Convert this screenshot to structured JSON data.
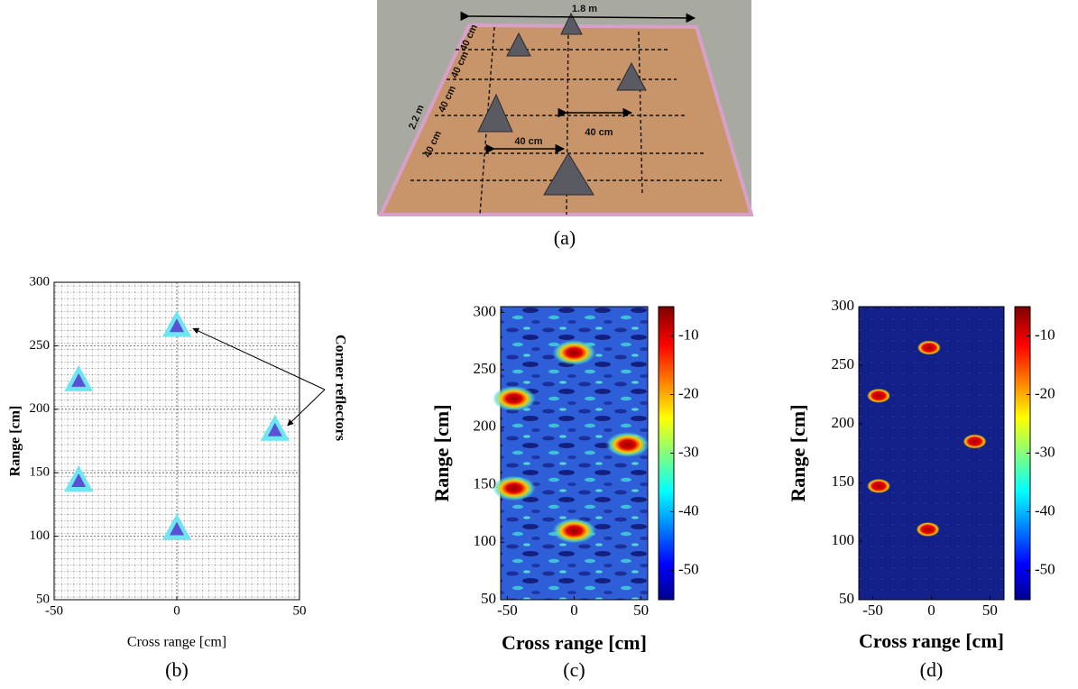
{
  "photo": {
    "labels": [
      "1.8 m",
      "2.2 m",
      "40 cm",
      "40 cm",
      "40 cm",
      "40 cm",
      "40 cm",
      "40 cm"
    ],
    "caption": "(a)"
  },
  "chart_data": [
    {
      "type": "scatter",
      "caption": "(b)",
      "xlabel": "Cross range [cm]",
      "ylabel": "Range [cm]",
      "annotation": "Corner reflectors",
      "x": [
        0,
        -40,
        40,
        -40,
        0
      ],
      "y": [
        265,
        222,
        183,
        143,
        105
      ],
      "xlim": [
        -50,
        50
      ],
      "ylim": [
        50,
        300
      ],
      "xticks": [
        -50,
        0,
        50
      ],
      "yticks": [
        50,
        100,
        150,
        200,
        250,
        300
      ],
      "grid": true
    },
    {
      "type": "heatmap",
      "caption": "(c)",
      "xlabel": "Cross range [cm]",
      "ylabel": "Range [cm]",
      "peaks": {
        "x": [
          0,
          -45,
          40,
          -45,
          0
        ],
        "y": [
          265,
          225,
          185,
          147,
          110
        ]
      },
      "xlim": [
        -55,
        55
      ],
      "ylim": [
        50,
        305
      ],
      "xticks": [
        -50,
        0,
        50
      ],
      "yticks": [
        50,
        100,
        150,
        200,
        250,
        300
      ],
      "clim": [
        -55,
        -5
      ],
      "colorbar_ticks": [
        -10,
        -20,
        -30,
        -40,
        -50
      ]
    },
    {
      "type": "heatmap",
      "caption": "(d)",
      "xlabel": "Cross range [cm]",
      "ylabel": "Range [cm]",
      "peaks": {
        "x": [
          -2,
          -45,
          37,
          -45,
          -3
        ],
        "y": [
          265,
          224,
          185,
          147,
          110
        ]
      },
      "xlim": [
        -62,
        62
      ],
      "ylim": [
        50,
        300
      ],
      "xticks": [
        -50,
        0,
        50
      ],
      "yticks": [
        50,
        100,
        150,
        200,
        250,
        300
      ],
      "clim": [
        -55,
        -5
      ],
      "colorbar_ticks": [
        -10,
        -20,
        -30,
        -40,
        -50
      ]
    }
  ]
}
